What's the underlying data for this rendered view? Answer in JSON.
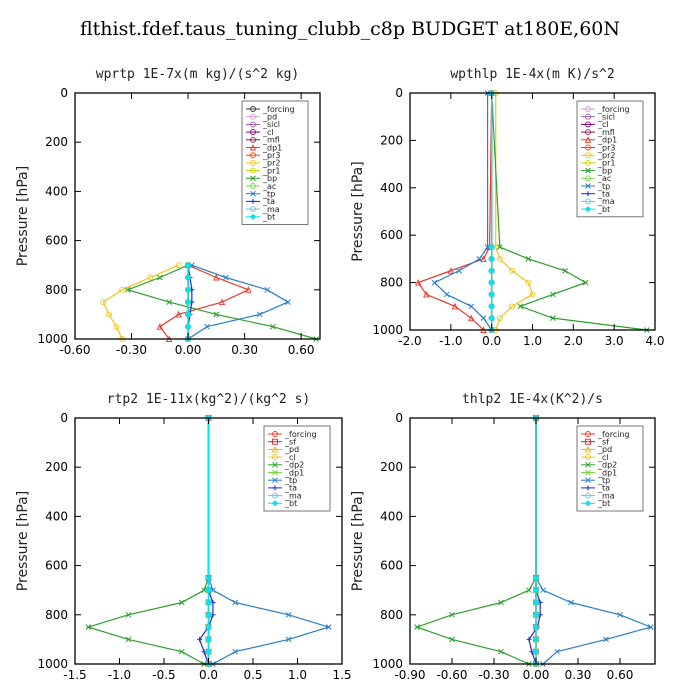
{
  "title": "flthist.fdef.taus_tuning_clubb_c8p  BUDGET at180E,60N",
  "chart_data": [
    {
      "type": "line",
      "title": "wprtp  1E-7x(m kg)/(s^2 kg)",
      "ylabel": "Pressure [hPa]",
      "xlim": [
        -0.6,
        0.7
      ],
      "ylim": [
        1000,
        0
      ],
      "xticks": [
        "-0.60",
        "-0.30",
        "0.00",
        "0.30",
        "0.60"
      ],
      "xtick_values": [
        -0.6,
        -0.3,
        0.0,
        0.3,
        0.6
      ],
      "yticks": [
        "0",
        "200",
        "400",
        "600",
        "800",
        "1000"
      ],
      "ytick_values": [
        0,
        200,
        400,
        600,
        800,
        1000
      ],
      "legend_position": "top-right",
      "pressure": [
        700,
        750,
        800,
        850,
        900,
        950,
        1000
      ],
      "series": [
        {
          "name": "_forcing",
          "color": "#333333",
          "marker": "circle",
          "values": [
            0,
            0,
            0,
            0,
            0,
            0,
            0
          ]
        },
        {
          "name": "_pd",
          "color": "#d69fd6",
          "marker": "circle",
          "values": [
            0,
            0,
            0,
            0,
            0,
            0,
            0
          ]
        },
        {
          "name": "_sicl",
          "color": "#9b59b6",
          "marker": "circle",
          "values": [
            0,
            0,
            0,
            0,
            0,
            0,
            0
          ]
        },
        {
          "name": "_cl",
          "color": "#800080",
          "marker": "circle",
          "values": [
            0,
            0,
            0,
            0,
            0,
            0,
            0
          ]
        },
        {
          "name": "_mfl",
          "color": "#8b1a4a",
          "marker": "circle",
          "values": [
            0,
            0,
            0,
            0,
            0,
            0,
            0
          ]
        },
        {
          "name": "_dp1",
          "color": "#e8392a",
          "marker": "tri",
          "values": [
            0.0,
            0.15,
            0.32,
            0.18,
            -0.05,
            -0.15,
            -0.1
          ]
        },
        {
          "name": "_pr3",
          "color": "#ff4500",
          "marker": "circle",
          "values": [
            0,
            0,
            0,
            0,
            0,
            0,
            0
          ]
        },
        {
          "name": "_pr2",
          "color": "#f0c419",
          "marker": "circle",
          "values": [
            -0.05,
            -0.2,
            -0.35,
            -0.45,
            -0.42,
            -0.38,
            -0.35
          ]
        },
        {
          "name": "_pr1",
          "color": "#c8d400",
          "marker": "circle",
          "values": [
            0,
            0,
            0,
            0,
            0,
            0,
            0
          ]
        },
        {
          "name": "_bp",
          "color": "#2ca02c",
          "marker": "x",
          "values": [
            0.0,
            -0.15,
            -0.32,
            -0.1,
            0.15,
            0.45,
            0.68
          ]
        },
        {
          "name": "_ac",
          "color": "#7cd44a",
          "marker": "circle",
          "values": [
            0,
            0,
            0,
            0,
            0,
            0,
            0
          ]
        },
        {
          "name": "_tp",
          "color": "#2a7fc9",
          "marker": "x",
          "values": [
            0.02,
            0.2,
            0.42,
            0.53,
            0.38,
            0.1,
            0.0
          ]
        },
        {
          "name": "_ta",
          "color": "#1f2bd4",
          "marker": "plus",
          "values": [
            0.0,
            0.01,
            0.02,
            0.02,
            0.01,
            0.0,
            0.0
          ]
        },
        {
          "name": "_ma",
          "color": "#66c2e0",
          "marker": "circle",
          "values": [
            0,
            0,
            0,
            0,
            0,
            0,
            0
          ]
        },
        {
          "name": "_bt",
          "color": "#00e5ee",
          "marker": "diamond",
          "values": [
            0,
            0,
            0,
            0,
            0,
            0,
            0
          ]
        }
      ]
    },
    {
      "type": "line",
      "title": "wpthlp  1E-4x(m K)/s^2",
      "ylabel": "Pressure [hPa]",
      "xlim": [
        -2.0,
        4.0
      ],
      "ylim": [
        1000,
        0
      ],
      "xticks": [
        "-2.0",
        "-1.0",
        "0.0",
        "1.0",
        "2.0",
        "3.0",
        "4.0"
      ],
      "xtick_values": [
        -2.0,
        -1.0,
        0.0,
        1.0,
        2.0,
        3.0,
        4.0
      ],
      "yticks": [
        "0",
        "200",
        "400",
        "600",
        "800",
        "1000"
      ],
      "ytick_values": [
        0,
        200,
        400,
        600,
        800,
        1000
      ],
      "legend_position": "top-right",
      "pressure": [
        0,
        650,
        700,
        750,
        800,
        850,
        900,
        950,
        1000
      ],
      "series": [
        {
          "name": "_forcing",
          "color": "#d69fd6",
          "marker": "circle",
          "values": [
            0,
            0,
            0,
            0,
            0,
            0,
            0,
            0,
            0
          ]
        },
        {
          "name": "_sicl",
          "color": "#9b59b6",
          "marker": "circle",
          "values": [
            0,
            0,
            0,
            0,
            0,
            0,
            0,
            0,
            0
          ]
        },
        {
          "name": "_cl",
          "color": "#800080",
          "marker": "circle",
          "values": [
            0,
            0,
            0,
            0,
            0,
            0,
            0,
            0,
            0
          ]
        },
        {
          "name": "_mfl",
          "color": "#8b1a4a",
          "marker": "circle",
          "values": [
            0,
            0,
            0,
            0,
            0,
            0,
            0,
            0,
            0
          ]
        },
        {
          "name": "_dp1",
          "color": "#e8392a",
          "marker": "tri",
          "values": [
            0.0,
            -0.05,
            -0.2,
            -1.0,
            -1.8,
            -1.6,
            -0.9,
            -0.5,
            -0.2
          ]
        },
        {
          "name": "_pr3",
          "color": "#ff4500",
          "marker": "circle",
          "values": [
            0,
            0,
            0,
            0,
            0,
            0,
            0,
            0,
            0
          ]
        },
        {
          "name": "_pr2",
          "color": "#f0c419",
          "marker": "circle",
          "values": [
            0.1,
            0.1,
            0.2,
            0.5,
            0.9,
            1.0,
            0.5,
            0.2,
            0.1
          ]
        },
        {
          "name": "_pr1",
          "color": "#c8d400",
          "marker": "circle",
          "values": [
            0,
            0,
            0,
            0,
            0,
            0,
            0,
            0,
            0
          ]
        },
        {
          "name": "_bp",
          "color": "#2ca02c",
          "marker": "x",
          "values": [
            0.0,
            0.2,
            0.9,
            1.8,
            2.3,
            1.5,
            0.7,
            1.5,
            3.8
          ]
        },
        {
          "name": "_ac",
          "color": "#7cd44a",
          "marker": "circle",
          "values": [
            0,
            0,
            0,
            0,
            0,
            0,
            0,
            0,
            0
          ]
        },
        {
          "name": "_tp",
          "color": "#2a7fc9",
          "marker": "x",
          "values": [
            -0.1,
            -0.1,
            -0.3,
            -0.8,
            -1.4,
            -1.1,
            -0.5,
            -0.2,
            0.0
          ]
        },
        {
          "name": "_ta",
          "color": "#1f2bd4",
          "marker": "plus",
          "values": [
            0,
            0,
            0,
            0,
            0,
            0,
            0,
            0,
            0
          ]
        },
        {
          "name": "_ma",
          "color": "#66c2e0",
          "marker": "circle",
          "values": [
            0,
            0,
            0,
            0,
            0,
            0,
            0,
            0,
            0
          ]
        },
        {
          "name": "_bt",
          "color": "#00e5ee",
          "marker": "diamond",
          "values": [
            0,
            0,
            0,
            0,
            0,
            0,
            0,
            0,
            0
          ]
        }
      ]
    },
    {
      "type": "line",
      "title": "rtp2  1E-11x(kg^2)/(kg^2 s)",
      "ylabel": "Pressure [hPa]",
      "xlim": [
        -1.5,
        1.5
      ],
      "ylim": [
        1000,
        0
      ],
      "xticks": [
        "-1.5",
        "-1.0",
        "-0.5",
        "0.0",
        "0.5",
        "1.0",
        "1.5"
      ],
      "xtick_values": [
        -1.5,
        -1.0,
        -0.5,
        0.0,
        0.5,
        1.0,
        1.5
      ],
      "yticks": [
        "0",
        "200",
        "400",
        "600",
        "800",
        "1000"
      ],
      "ytick_values": [
        0,
        200,
        400,
        600,
        800,
        1000
      ],
      "legend_position": "top-right",
      "pressure": [
        0,
        650,
        700,
        750,
        800,
        850,
        900,
        950,
        1000
      ],
      "series": [
        {
          "name": "_forcing",
          "color": "#e8392a",
          "marker": "circle",
          "values": [
            0,
            0,
            0,
            0,
            0,
            0,
            0,
            0,
            0
          ]
        },
        {
          "name": "_sf",
          "color": "#d62728",
          "marker": "square",
          "values": [
            0,
            0,
            0,
            0,
            0,
            0,
            0,
            0,
            0
          ]
        },
        {
          "name": "_pd",
          "color": "#ffb000",
          "marker": "tri",
          "values": [
            0,
            0,
            0,
            0,
            0,
            0,
            0,
            0,
            0
          ]
        },
        {
          "name": "_cl",
          "color": "#f0c419",
          "marker": "circle",
          "values": [
            0,
            0,
            0,
            0,
            0,
            0,
            0,
            0,
            0
          ]
        },
        {
          "name": "_dp2",
          "color": "#2ca02c",
          "marker": "x",
          "values": [
            0,
            0,
            -0.05,
            -0.3,
            -0.9,
            -1.35,
            -0.9,
            -0.3,
            -0.05
          ]
        },
        {
          "name": "_dp1",
          "color": "#7cd44a",
          "marker": "x",
          "values": [
            0,
            0,
            0,
            0,
            0,
            0,
            0,
            0,
            0
          ]
        },
        {
          "name": "_tp",
          "color": "#2a7fc9",
          "marker": "x",
          "values": [
            0,
            0,
            0.05,
            0.3,
            0.9,
            1.35,
            0.9,
            0.3,
            0.05
          ]
        },
        {
          "name": "_ta",
          "color": "#1f2bd4",
          "marker": "plus",
          "values": [
            0,
            0,
            0,
            0.05,
            0.05,
            0.0,
            -0.1,
            -0.05,
            0
          ]
        },
        {
          "name": "_ma",
          "color": "#66c2e0",
          "marker": "circle",
          "values": [
            0,
            0,
            0,
            0,
            0,
            0,
            0,
            0,
            0
          ]
        },
        {
          "name": "_bt",
          "color": "#00e5ee",
          "marker": "diamond",
          "values": [
            0,
            0,
            0,
            0,
            0,
            0,
            0,
            0,
            0
          ]
        }
      ]
    },
    {
      "type": "line",
      "title": "thlp2  1E-4x(K^2)/s",
      "ylabel": "Pressure [hPa]",
      "xlim": [
        -0.9,
        0.85
      ],
      "ylim": [
        1000,
        0
      ],
      "xticks": [
        "-0.90",
        "-0.60",
        "-0.30",
        "0.00",
        "0.30",
        "0.60"
      ],
      "xtick_values": [
        -0.9,
        -0.6,
        -0.3,
        0.0,
        0.3,
        0.6
      ],
      "yticks": [
        "0",
        "200",
        "400",
        "600",
        "800",
        "1000"
      ],
      "ytick_values": [
        0,
        200,
        400,
        600,
        800,
        1000
      ],
      "legend_position": "top-right",
      "pressure": [
        0,
        650,
        700,
        750,
        800,
        850,
        900,
        950,
        1000
      ],
      "series": [
        {
          "name": "_forcing",
          "color": "#e8392a",
          "marker": "circle",
          "values": [
            0,
            0,
            0,
            0,
            0,
            0,
            0,
            0,
            0
          ]
        },
        {
          "name": "_sf",
          "color": "#d62728",
          "marker": "square",
          "values": [
            0,
            0,
            0,
            0,
            0,
            0,
            0,
            0,
            0
          ]
        },
        {
          "name": "_pd",
          "color": "#ffb000",
          "marker": "tri",
          "values": [
            0,
            0,
            0,
            0,
            0,
            0,
            0,
            0,
            0
          ]
        },
        {
          "name": "_cl",
          "color": "#f0c419",
          "marker": "circle",
          "values": [
            0,
            0,
            0,
            0,
            0,
            0,
            0,
            0,
            0
          ]
        },
        {
          "name": "_dp2",
          "color": "#2ca02c",
          "marker": "x",
          "values": [
            0,
            0,
            -0.05,
            -0.25,
            -0.6,
            -0.85,
            -0.6,
            -0.25,
            -0.05
          ]
        },
        {
          "name": "_dp1",
          "color": "#7cd44a",
          "marker": "x",
          "values": [
            0,
            0,
            0,
            0,
            0,
            0,
            0,
            0,
            0
          ]
        },
        {
          "name": "_tp",
          "color": "#2a7fc9",
          "marker": "x",
          "values": [
            0,
            0,
            0.05,
            0.25,
            0.6,
            0.82,
            0.5,
            0.15,
            0.05
          ]
        },
        {
          "name": "_ta",
          "color": "#1f2bd4",
          "marker": "plus",
          "values": [
            0,
            0,
            0,
            0.03,
            0.03,
            0.01,
            -0.05,
            -0.03,
            0
          ]
        },
        {
          "name": "_ma",
          "color": "#66c2e0",
          "marker": "circle",
          "values": [
            0,
            0,
            0,
            0,
            0,
            0,
            0,
            0,
            0
          ]
        },
        {
          "name": "_bt",
          "color": "#00e5ee",
          "marker": "diamond",
          "values": [
            0,
            0,
            0,
            0,
            0,
            0,
            0,
            0,
            0
          ]
        }
      ]
    }
  ]
}
